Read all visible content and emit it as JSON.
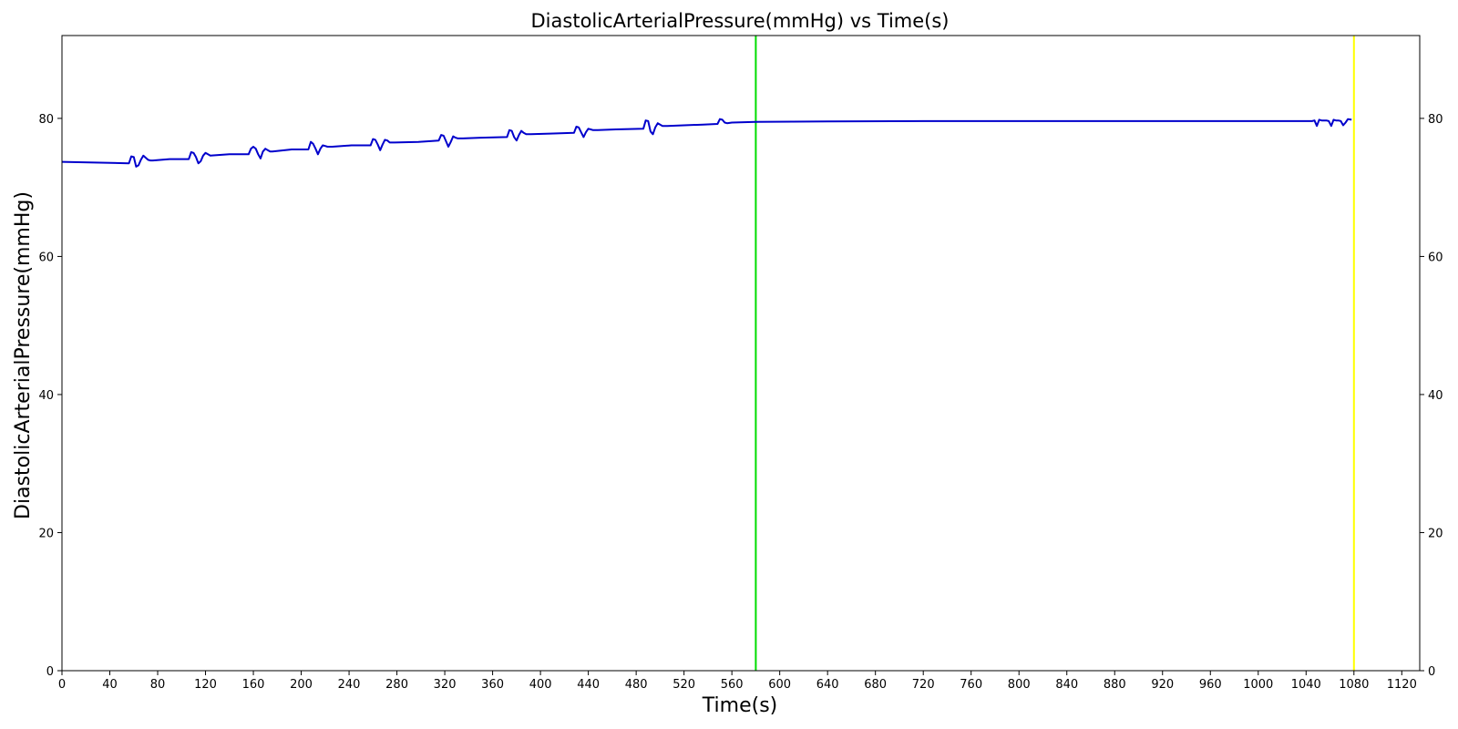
{
  "chart_data": {
    "type": "line",
    "title": "DiastolicArterialPressure(mmHg) vs Time(s)",
    "xlabel": "Time(s)",
    "ylabel": "DiastolicArterialPressure(mmHg)",
    "xlim": [
      0,
      1135
    ],
    "ylim": [
      0,
      92
    ],
    "x_ticks": [
      0,
      40,
      80,
      120,
      160,
      200,
      240,
      280,
      320,
      360,
      400,
      440,
      480,
      520,
      560,
      600,
      640,
      680,
      720,
      760,
      800,
      840,
      880,
      920,
      960,
      1000,
      1040,
      1080,
      1120
    ],
    "y_ticks": [
      0,
      20,
      40,
      60,
      80
    ],
    "right_y_ticks": [
      0,
      20,
      40,
      60,
      80
    ],
    "grid": false,
    "series": [
      {
        "color": "#0000cc",
        "x": [
          0,
          56,
          58,
          60,
          62,
          64,
          66,
          68,
          70,
          72,
          74,
          76,
          90,
          106,
          108,
          110,
          112,
          114,
          116,
          118,
          120,
          122,
          124,
          140,
          156,
          158,
          160,
          162,
          164,
          166,
          168,
          170,
          172,
          174,
          176,
          192,
          206,
          208,
          210,
          212,
          214,
          216,
          218,
          220,
          222,
          224,
          226,
          242,
          258,
          260,
          262,
          264,
          266,
          268,
          270,
          272,
          274,
          276,
          278,
          298,
          315,
          317,
          319,
          321,
          323,
          325,
          327,
          329,
          331,
          333,
          335,
          350,
          372,
          374,
          376,
          378,
          380,
          382,
          384,
          386,
          388,
          390,
          392,
          408,
          428,
          430,
          432,
          434,
          436,
          438,
          440,
          442,
          444,
          446,
          448,
          463,
          486,
          488,
          490,
          492,
          494,
          496,
          498,
          500,
          502,
          504,
          506,
          520,
          536,
          548,
          550,
          552,
          554,
          556,
          560,
          580,
          640,
          720,
          800,
          1000,
          1045,
          1047,
          1049,
          1051,
          1053,
          1055,
          1057,
          1059,
          1061,
          1063,
          1065,
          1067,
          1069,
          1071,
          1073,
          1075,
          1078
        ],
        "y": [
          73.7,
          73.5,
          74.5,
          74.4,
          73.0,
          73.2,
          74.0,
          74.6,
          74.3,
          74.0,
          73.9,
          73.9,
          74.1,
          74.1,
          75.1,
          75.0,
          74.4,
          73.5,
          73.8,
          74.6,
          75.0,
          74.8,
          74.6,
          74.8,
          74.8,
          75.6,
          75.9,
          75.6,
          74.8,
          74.2,
          75.2,
          75.6,
          75.4,
          75.2,
          75.2,
          75.5,
          75.5,
          76.6,
          76.3,
          75.6,
          74.8,
          75.6,
          76.1,
          76.0,
          75.9,
          75.9,
          75.9,
          76.1,
          76.1,
          77.0,
          76.9,
          76.2,
          75.4,
          76.2,
          76.9,
          76.8,
          76.5,
          76.5,
          76.5,
          76.6,
          76.8,
          77.6,
          77.5,
          76.7,
          75.9,
          76.6,
          77.4,
          77.2,
          77.1,
          77.1,
          77.1,
          77.2,
          77.3,
          78.3,
          78.2,
          77.3,
          76.8,
          77.6,
          78.2,
          77.9,
          77.7,
          77.7,
          77.7,
          77.8,
          77.9,
          78.8,
          78.7,
          78.0,
          77.3,
          78.0,
          78.5,
          78.4,
          78.3,
          78.3,
          78.3,
          78.4,
          78.5,
          79.7,
          79.6,
          78.1,
          77.7,
          78.7,
          79.3,
          79.1,
          78.9,
          78.9,
          78.9,
          79.0,
          79.1,
          79.2,
          79.9,
          79.8,
          79.4,
          79.3,
          79.4,
          79.5,
          79.55,
          79.6,
          79.6,
          79.6,
          79.6,
          79.7,
          78.9,
          79.8,
          79.7,
          79.7,
          79.7,
          79.6,
          78.9,
          79.8,
          79.7,
          79.7,
          79.6,
          79.0,
          79.4,
          79.9,
          79.8
        ]
      }
    ],
    "vlines": [
      {
        "x": 580,
        "color": "#00dd00"
      },
      {
        "x": 1080,
        "color": "#ffff00"
      }
    ]
  }
}
